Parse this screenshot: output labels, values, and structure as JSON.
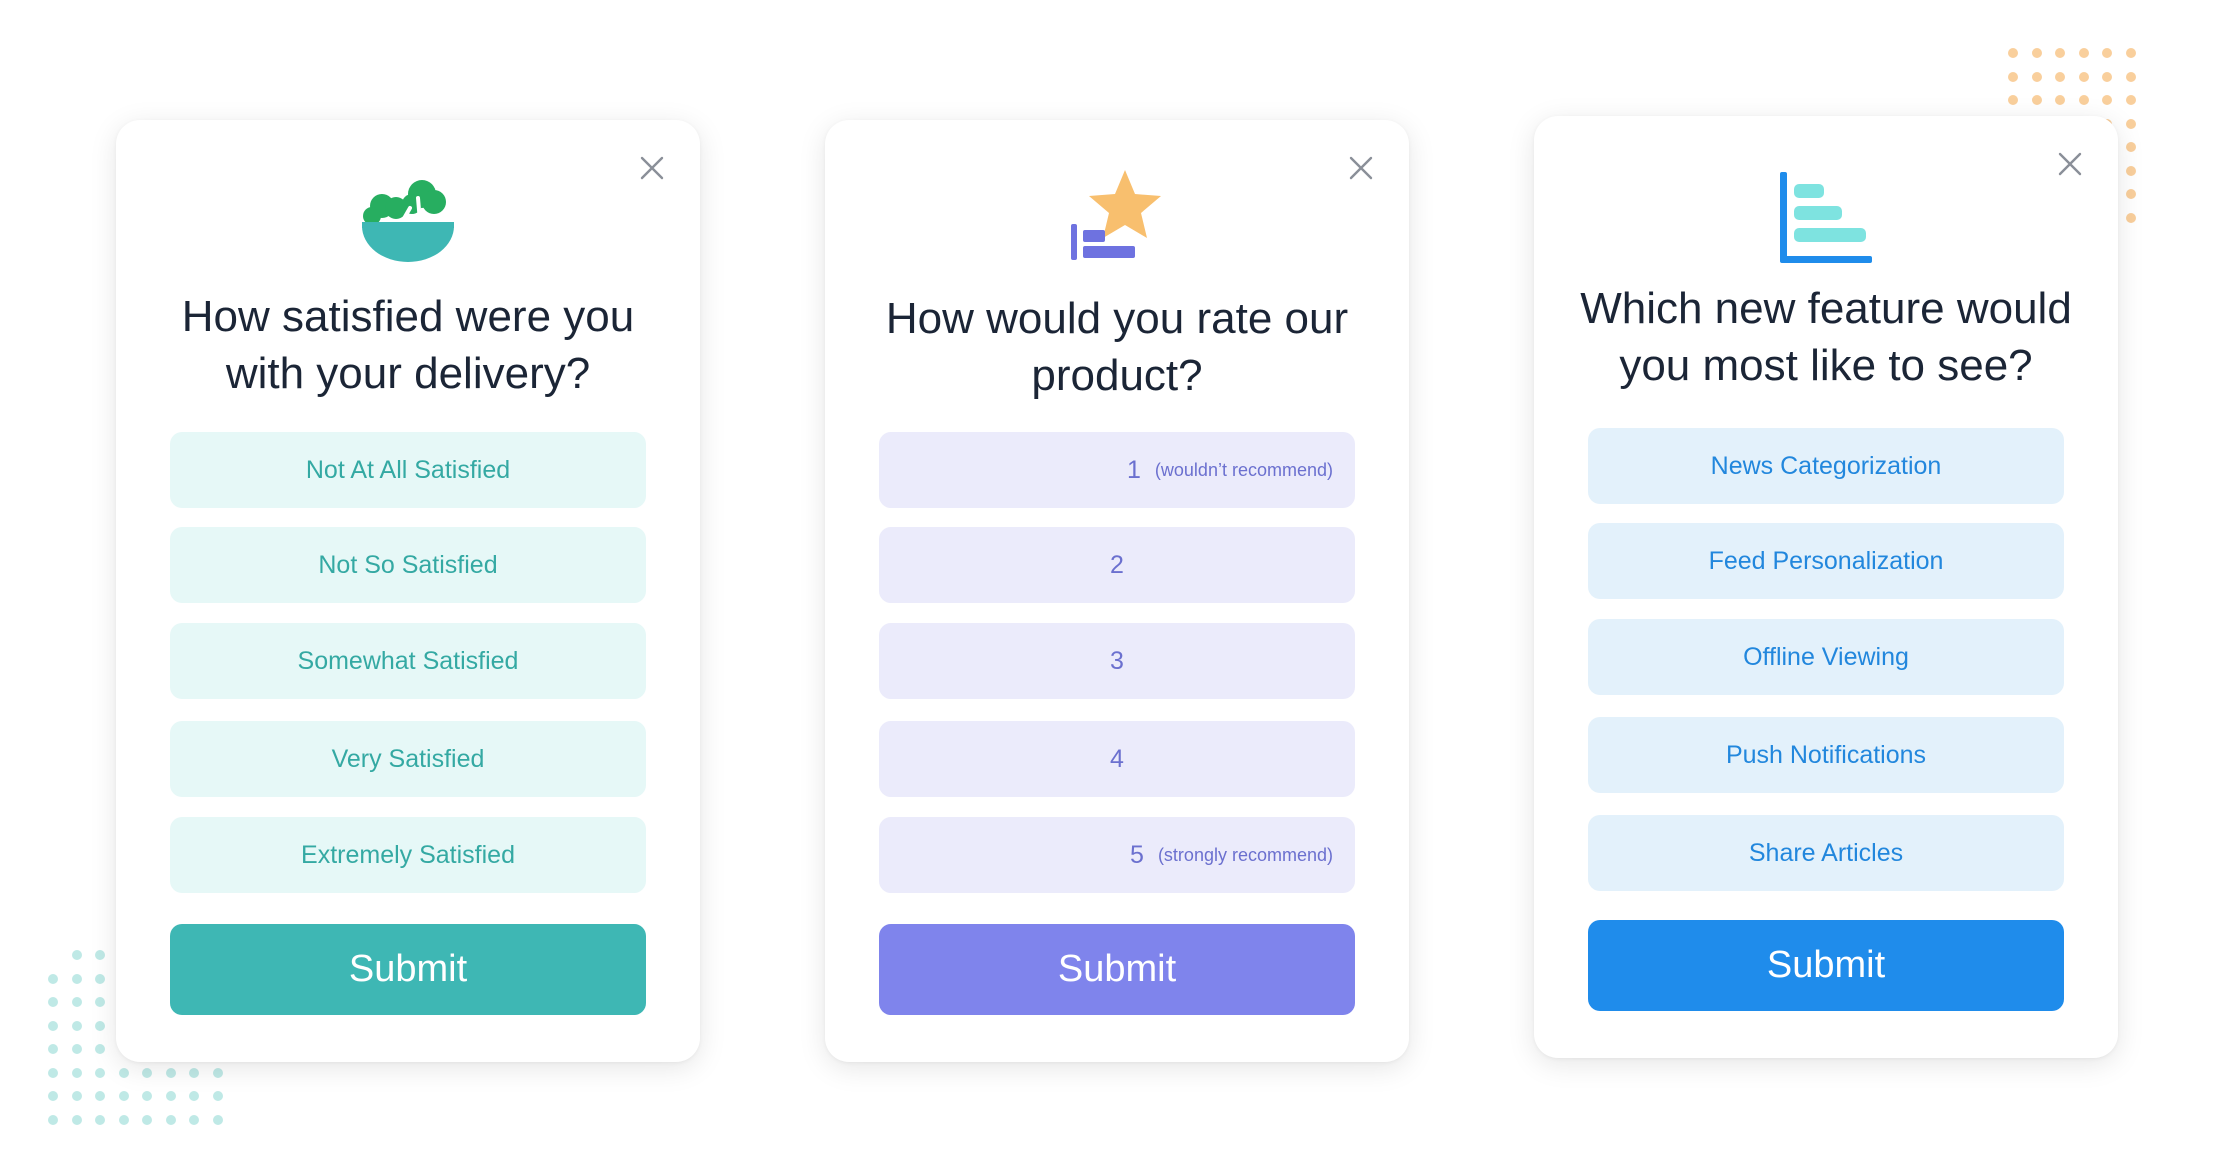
{
  "colors": {
    "teal_accent": "#3eb7b4",
    "teal_option_bg": "#e6f8f7",
    "teal_option_text": "#34a9a3",
    "purple_accent": "#7f84ec",
    "purple_option_bg": "#ebebfb",
    "purple_option_text": "#6b70cf",
    "blue_accent": "#1f8ceb",
    "blue_option_bg": "#e3f1fb",
    "blue_option_text": "#2287dd",
    "question_text": "#1b2536",
    "dots_teal": "#bfe9e6",
    "dots_orange": "#f9cf9c"
  },
  "cards": [
    {
      "icon": "salad-bowl-icon",
      "question": "How satisfied were you with your delivery?",
      "options": [
        "Not At All Satisfied",
        "Not So Satisfied",
        "Somewhat Satisfied",
        "Very Satisfied",
        "Extremely Satisfied"
      ],
      "submit_label": "Submit"
    },
    {
      "icon": "star-rating-icon",
      "question": "How would you rate our product?",
      "options": [
        {
          "value": "1",
          "hint": "(wouldn’t recommend)"
        },
        {
          "value": "2",
          "hint": ""
        },
        {
          "value": "3",
          "hint": ""
        },
        {
          "value": "4",
          "hint": ""
        },
        {
          "value": "5",
          "hint": "(strongly recommend)"
        }
      ],
      "submit_label": "Submit"
    },
    {
      "icon": "bar-chart-icon",
      "question": "Which new feature would you most like to see?",
      "options": [
        "News Categorization",
        "Feed Personalization",
        "Offline Viewing",
        "Push Notifications",
        "Share Articles"
      ],
      "submit_label": "Submit"
    }
  ]
}
